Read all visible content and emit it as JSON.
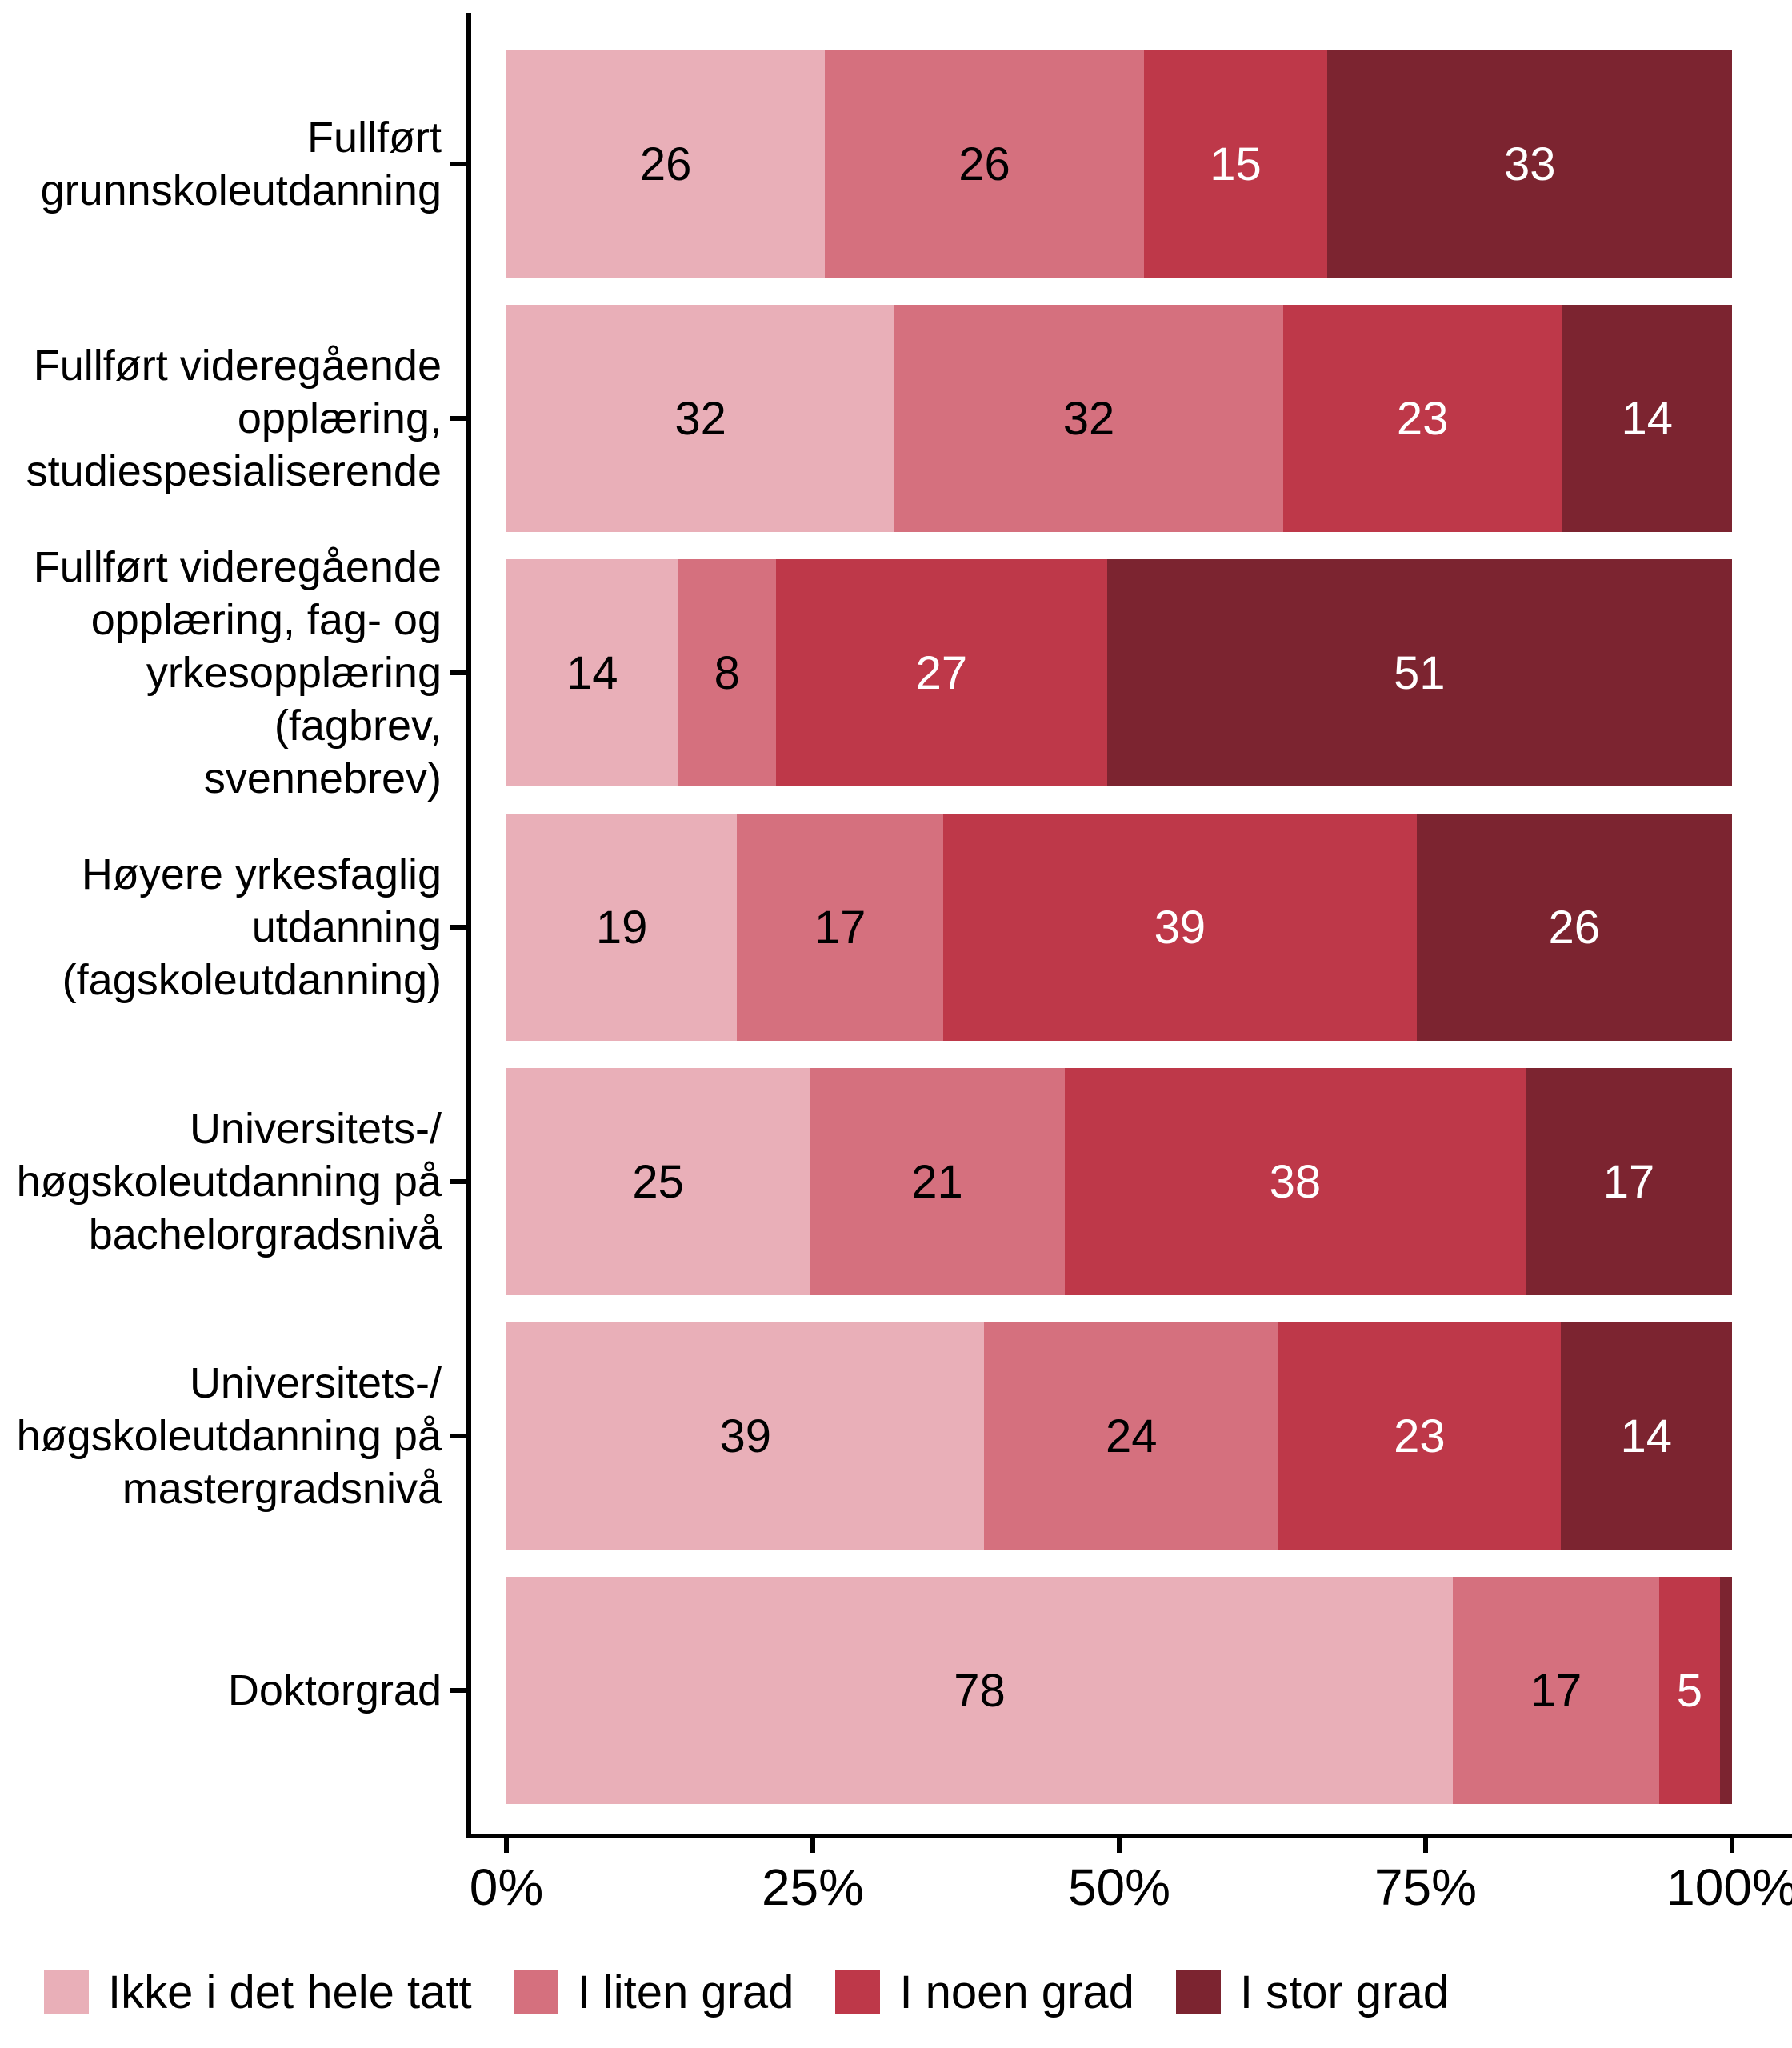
{
  "chart_data": {
    "type": "bar",
    "orientation": "horizontal",
    "stacked": true,
    "title": "",
    "xlabel": "",
    "ylabel": "",
    "xlim": [
      0,
      100
    ],
    "grid": false,
    "legend_position": "bottom",
    "x_ticks": [
      {
        "label": "0%",
        "value": 0
      },
      {
        "label": "25%",
        "value": 25
      },
      {
        "label": "50%",
        "value": 50
      },
      {
        "label": "75%",
        "value": 75
      },
      {
        "label": "100%",
        "value": 100
      }
    ],
    "series_names": [
      "Ikke i det hele tatt",
      "I liten grad",
      "I noen grad",
      "I stor grad"
    ],
    "series_colors": [
      "#E9AFB8",
      "#D5707E",
      "#BE3849",
      "#7C2430"
    ],
    "value_label_colors": [
      "#000000",
      "#000000",
      "#FFFFFF",
      "#FFFFFF"
    ],
    "categories": [
      "Fullført grunnskoleutdanning",
      "Fullført videregående opplæring, studiespesialiserende",
      "Fullført videregående opplæring, fag- og yrkesopplæring (fagbrev, svennebrev)",
      "Høyere yrkesfaglig utdanning (fagskoleutdanning)",
      "Universitets-/høgskoleutdanning på bachelorgradsnivå",
      "Universitets-/høgskoleutdanning på mastergradsnivå",
      "Doktorgrad"
    ],
    "rows": [
      {
        "category_display": "Fullført\ngrunnskoleutdanning",
        "values": [
          26,
          26,
          15,
          33
        ],
        "labels": [
          "26",
          "26",
          "15",
          "33"
        ]
      },
      {
        "category_display": "Fullført videregående\nopplæring,\nstudiespesialiserende",
        "values": [
          32,
          32,
          23,
          14
        ],
        "labels": [
          "32",
          "32",
          "23",
          "14"
        ]
      },
      {
        "category_display": "Fullført videregående\nopplæring, fag- og\nyrkesopplæring (fagbrev,\nsvennebrev)",
        "values": [
          14,
          8,
          27,
          51
        ],
        "labels": [
          "14",
          "8",
          "27",
          "51"
        ]
      },
      {
        "category_display": "Høyere yrkesfaglig\nutdanning\n(fagskoleutdanning)",
        "values": [
          19,
          17,
          39,
          26
        ],
        "labels": [
          "19",
          "17",
          "39",
          "26"
        ]
      },
      {
        "category_display": "Universitets-/\nhøgskoleutdanning på\nbachelorgradsnivå",
        "values": [
          25,
          21,
          38,
          17
        ],
        "labels": [
          "25",
          "21",
          "38",
          "17"
        ]
      },
      {
        "category_display": "Universitets-/\nhøgskoleutdanning på\nmastergradsnivå",
        "values": [
          39,
          24,
          23,
          14
        ],
        "labels": [
          "39",
          "24",
          "23",
          "14"
        ]
      },
      {
        "category_display": "Doktorgrad",
        "values": [
          78,
          17,
          5,
          1
        ],
        "labels": [
          "78",
          "17",
          "5",
          ""
        ]
      }
    ]
  },
  "legend": {
    "items": [
      {
        "label": "Ikke i det hele tatt",
        "color": "#E9AFB8"
      },
      {
        "label": "I liten grad",
        "color": "#D5707E"
      },
      {
        "label": "I noen grad",
        "color": "#BE3849"
      },
      {
        "label": "I stor grad",
        "color": "#7C2430"
      }
    ]
  },
  "layout_colors": {
    "axis_line": "#000000",
    "background": "#FFFFFF"
  }
}
